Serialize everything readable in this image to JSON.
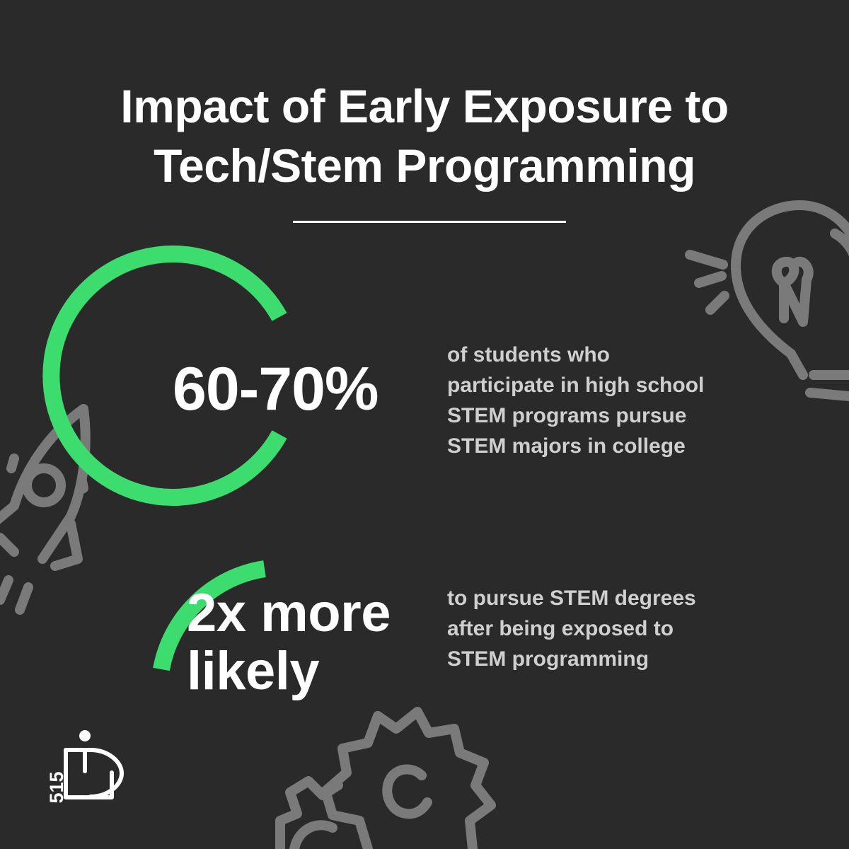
{
  "title": {
    "line1": "Impact of Early Exposure to",
    "line2": "Tech/Stem Programming"
  },
  "stats": [
    {
      "value": "60-70%",
      "description": [
        "of students who",
        "participate in high school",
        "STEM programs pursue",
        "STEM majors in college"
      ]
    },
    {
      "value": [
        "2x more",
        "likely"
      ],
      "description": [
        "to pursue STEM degrees",
        "after being exposed to",
        "STEM programming"
      ]
    }
  ],
  "logo": {
    "number": "515"
  },
  "icons": [
    "rocket-icon",
    "lightbulb-icon",
    "gears-icon",
    "brand-logo-icon"
  ],
  "colors": {
    "background": "#2a2a2a",
    "accent": "#3ddc6e",
    "text": "#ffffff",
    "muted_text": "#cfcfcf",
    "decoration": "#7a7a7a"
  }
}
